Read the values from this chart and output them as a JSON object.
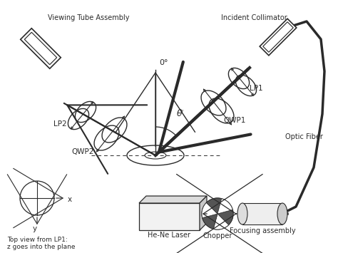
{
  "bg_color": "#ffffff",
  "line_color": "#2a2a2a",
  "text_color": "#2a2a2a",
  "labels": {
    "viewing_tube": "Viewing Tube Assembly",
    "incident_collimator": "Incident Collimator",
    "lp1": "LP1",
    "lp2": "LP2",
    "qwp1": "QWP1",
    "qwp2": "QWP2",
    "optic_fiber": "Optic Fiber",
    "he_ne": "He-Ne Laser",
    "chopper": "Chopper",
    "focusing": "Focusing assembly",
    "zero_deg": "0°",
    "theta_i": "θᴵ",
    "top_view": "Top view from LP1:\nz goes into the plane",
    "x_label": "x",
    "y_label": "y"
  },
  "figsize": [
    4.74,
    3.55
  ],
  "dpi": 100
}
